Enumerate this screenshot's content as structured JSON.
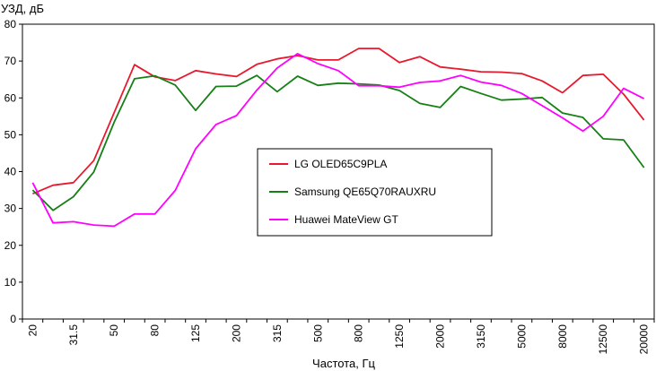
{
  "chart_data": {
    "type": "line",
    "ylabel": "УЗД, дБ",
    "xlabel": "Частота, Гц",
    "ylim": [
      0,
      80
    ],
    "yticks": [
      0,
      10,
      20,
      30,
      40,
      50,
      60,
      70,
      80
    ],
    "x": [
      "20",
      "25",
      "31.5",
      "40",
      "50",
      "63",
      "80",
      "100",
      "125",
      "160",
      "200",
      "250",
      "315",
      "400",
      "500",
      "630",
      "800",
      "1000",
      "1250",
      "1600",
      "2000",
      "2500",
      "3150",
      "4000",
      "5000",
      "6300",
      "8000",
      "10000",
      "12500",
      "16000",
      "20000"
    ],
    "x_tick_labels_shown": [
      "20",
      "31.5",
      "50",
      "80",
      "125",
      "200",
      "315",
      "500",
      "800",
      "1250",
      "2000",
      "3150",
      "5000",
      "8000",
      "12500",
      "20000"
    ],
    "grid": false,
    "legend": "center",
    "series": [
      {
        "name": "LG OLED65C9PLA",
        "color": "#e8192c",
        "values": [
          34.0,
          36.3,
          37.0,
          43.0,
          56.0,
          69.0,
          65.7,
          64.7,
          67.4,
          66.5,
          65.8,
          69.1,
          70.6,
          71.5,
          70.3,
          70.3,
          73.4,
          73.4,
          69.6,
          71.2,
          68.4,
          67.8,
          67.1,
          67.0,
          66.6,
          64.6,
          61.4,
          66.1,
          66.4,
          61.0,
          54.0
        ]
      },
      {
        "name": "Samsung QE65Q70RAUXRU",
        "color": "#168016",
        "values": [
          35.0,
          29.5,
          33.2,
          39.9,
          53.4,
          65.2,
          66.0,
          63.5,
          56.6,
          63.1,
          63.2,
          66.1,
          61.7,
          65.9,
          63.4,
          64.0,
          63.8,
          63.5,
          62.0,
          58.5,
          57.4,
          63.1,
          61.2,
          59.4,
          59.7,
          60.1,
          55.9,
          54.7,
          48.9,
          48.6,
          41.1
        ]
      },
      {
        "name": "Huawei MateView GT",
        "color": "#ff00ff",
        "values": [
          37.0,
          26.1,
          26.4,
          25.5,
          25.2,
          28.5,
          28.5,
          34.9,
          46.2,
          52.8,
          55.2,
          62.1,
          68.1,
          72.0,
          69.3,
          67.4,
          63.3,
          63.3,
          62.9,
          64.2,
          64.6,
          66.1,
          64.3,
          63.4,
          61.2,
          57.9,
          54.6,
          51.0,
          55.0,
          62.6,
          59.8
        ]
      }
    ]
  }
}
